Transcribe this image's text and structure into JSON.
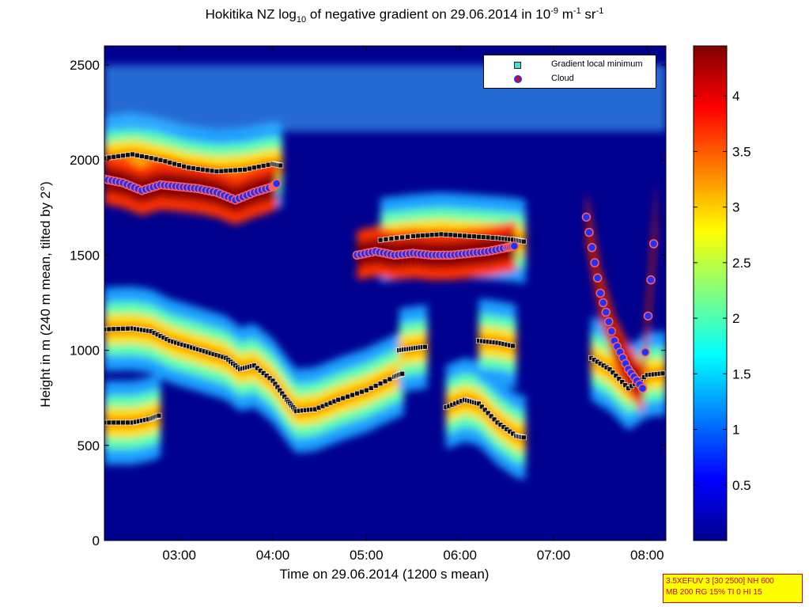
{
  "title": {
    "prefix": "Hokitika NZ log",
    "sub": "10",
    "middle": " of negative gradient on 29.06.2014 in 10",
    "exp1": "-9",
    "unit1": " m",
    "exp2": "-1",
    "unit2": " sr",
    "exp3": "-1"
  },
  "info_box": {
    "line1": "3.5XEFUV 3 [30 2500] NH 600",
    "line2": "MB 200 RG 15% TI 0 HI 15"
  },
  "chart_data": {
    "type": "heatmap",
    "xlabel": "Time on 29.06.2014 (1200 s mean)",
    "ylabel": "Height in m (240 m mean, tilted by 2°)",
    "xlim": [
      2.2,
      8.2
    ],
    "ylim": [
      0,
      2600
    ],
    "xticks": [
      {
        "value": 3,
        "label": "03:00"
      },
      {
        "value": 4,
        "label": "04:00"
      },
      {
        "value": 5,
        "label": "05:00"
      },
      {
        "value": 6,
        "label": "06:00"
      },
      {
        "value": 7,
        "label": "07:00"
      },
      {
        "value": 8,
        "label": "08:00"
      }
    ],
    "yticks": [
      0,
      500,
      1000,
      1500,
      2000,
      2500
    ],
    "colorbar": {
      "range": [
        0,
        4.45
      ],
      "ticks": [
        0.5,
        1,
        1.5,
        2,
        2.5,
        3,
        3.5,
        4
      ],
      "colormap": "jet"
    },
    "legend": {
      "placement": "top-right",
      "entries": [
        {
          "name": "Gradient local minimum",
          "marker": "square",
          "color": "#3fe0d8"
        },
        {
          "name": "Cloud",
          "marker": "circle",
          "color": "#e00000",
          "edge": "#2030ff"
        }
      ]
    },
    "gradient_minimum_layers": [
      {
        "points": [
          [
            2.2,
            1110
          ],
          [
            2.5,
            1115
          ],
          [
            2.7,
            1100
          ],
          [
            2.9,
            1050
          ],
          [
            3.1,
            1020
          ],
          [
            3.3,
            990
          ],
          [
            3.5,
            960
          ],
          [
            3.65,
            900
          ],
          [
            3.8,
            920
          ],
          [
            4.0,
            840
          ],
          [
            4.15,
            740
          ],
          [
            4.25,
            680
          ],
          [
            4.45,
            690
          ],
          [
            4.7,
            740
          ],
          [
            5.0,
            790
          ],
          [
            5.3,
            860
          ],
          [
            5.4,
            880
          ]
        ]
      },
      {
        "points": [
          [
            2.2,
            620
          ],
          [
            2.5,
            620
          ],
          [
            2.7,
            640
          ],
          [
            2.8,
            660
          ]
        ]
      },
      {
        "points": [
          [
            5.35,
            1000
          ],
          [
            5.5,
            1010
          ],
          [
            5.65,
            1020
          ]
        ]
      },
      {
        "points": [
          [
            5.15,
            1580
          ],
          [
            5.5,
            1600
          ],
          [
            5.8,
            1610
          ],
          [
            6.1,
            1600
          ],
          [
            6.4,
            1590
          ],
          [
            6.6,
            1580
          ],
          [
            6.7,
            1570
          ]
        ]
      },
      {
        "points": [
          [
            5.85,
            700
          ],
          [
            6.05,
            740
          ],
          [
            6.2,
            720
          ],
          [
            6.4,
            620
          ],
          [
            6.6,
            550
          ],
          [
            6.7,
            540
          ]
        ]
      },
      {
        "points": [
          [
            6.2,
            1050
          ],
          [
            6.4,
            1040
          ],
          [
            6.6,
            1020
          ]
        ]
      },
      {
        "points": [
          [
            2.2,
            2010
          ],
          [
            2.5,
            2030
          ],
          [
            2.8,
            2000
          ],
          [
            3.1,
            1960
          ],
          [
            3.4,
            1940
          ],
          [
            3.7,
            1950
          ],
          [
            4.0,
            1980
          ],
          [
            4.1,
            1970
          ]
        ]
      },
      {
        "points": [
          [
            7.4,
            960
          ],
          [
            7.6,
            900
          ],
          [
            7.8,
            800
          ],
          [
            8.0,
            870
          ],
          [
            8.2,
            880
          ]
        ]
      }
    ],
    "cloud_layers": [
      {
        "points": [
          [
            2.2,
            1900
          ],
          [
            2.4,
            1880
          ],
          [
            2.6,
            1840
          ],
          [
            2.8,
            1870
          ],
          [
            3.0,
            1860
          ],
          [
            3.2,
            1850
          ],
          [
            3.4,
            1830
          ],
          [
            3.6,
            1790
          ],
          [
            3.8,
            1830
          ],
          [
            4.0,
            1860
          ],
          [
            4.05,
            1880
          ]
        ]
      },
      {
        "points": [
          [
            4.9,
            1500
          ],
          [
            5.1,
            1520
          ],
          [
            5.3,
            1500
          ],
          [
            5.5,
            1510
          ],
          [
            5.7,
            1500
          ],
          [
            5.9,
            1500
          ],
          [
            6.1,
            1510
          ],
          [
            6.3,
            1520
          ],
          [
            6.5,
            1540
          ],
          [
            6.6,
            1550
          ]
        ]
      },
      {
        "points": [
          [
            7.35,
            1700
          ],
          [
            7.5,
            1300
          ],
          [
            7.65,
            1050
          ],
          [
            7.8,
            900
          ],
          [
            7.95,
            800
          ],
          [
            8.1,
            1750
          ]
        ]
      }
    ],
    "layers_note_color_min": "#3fe0d8"
  }
}
